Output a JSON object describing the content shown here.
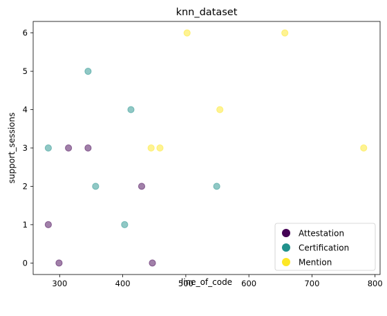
{
  "chart_data": {
    "type": "scatter",
    "title": "knn_dataset",
    "xlabel": "line_of_code",
    "ylabel": "support_sessions",
    "xlim": [
      258,
      808
    ],
    "ylim": [
      -0.3,
      6.3
    ],
    "xticks": [
      300,
      400,
      500,
      600,
      700,
      800
    ],
    "yticks": [
      0,
      1,
      2,
      3,
      4,
      5,
      6
    ],
    "grid": false,
    "legend_position": "lower-right",
    "series": [
      {
        "name": "Attestation",
        "color": "#440154",
        "points": [
          {
            "x": 282,
            "y": 1
          },
          {
            "x": 299,
            "y": 0
          },
          {
            "x": 314,
            "y": 3
          },
          {
            "x": 345,
            "y": 3
          },
          {
            "x": 430,
            "y": 2
          },
          {
            "x": 447,
            "y": 0
          }
        ]
      },
      {
        "name": "Certification",
        "color": "#21918c",
        "points": [
          {
            "x": 282,
            "y": 3
          },
          {
            "x": 345,
            "y": 5
          },
          {
            "x": 357,
            "y": 2
          },
          {
            "x": 403,
            "y": 1
          },
          {
            "x": 413,
            "y": 4
          },
          {
            "x": 549,
            "y": 2
          }
        ]
      },
      {
        "name": "Mention",
        "color": "#fde725",
        "points": [
          {
            "x": 445,
            "y": 3
          },
          {
            "x": 459,
            "y": 3
          },
          {
            "x": 502,
            "y": 6
          },
          {
            "x": 554,
            "y": 4
          },
          {
            "x": 657,
            "y": 6
          },
          {
            "x": 782,
            "y": 3
          }
        ]
      }
    ]
  }
}
